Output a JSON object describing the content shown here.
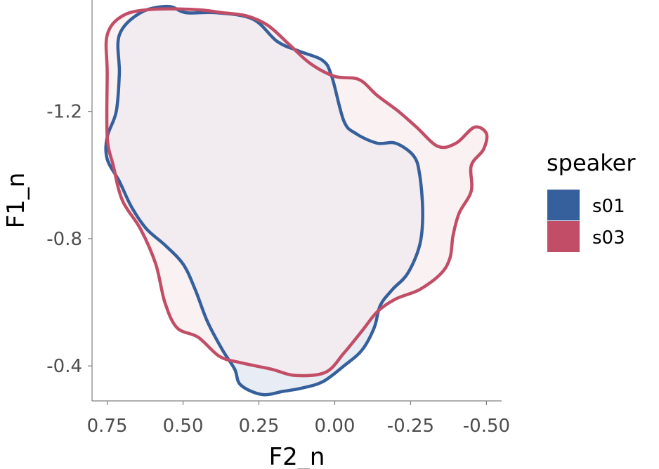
{
  "chart_data": {
    "type": "area",
    "xlabel": "F2_n",
    "ylabel": "F1_n",
    "x_reversed": true,
    "y_reversed": true,
    "xlim": [
      0.8,
      -0.55
    ],
    "ylim": [
      -1.55,
      -0.29
    ],
    "x_ticks": [
      0.75,
      0.5,
      0.25,
      0.0,
      -0.25,
      -0.5
    ],
    "x_tick_labels": [
      "0.75",
      "0.50",
      "0.25",
      "0.00",
      "-0.25",
      "-0.50"
    ],
    "y_ticks": [
      -1.2,
      -0.8,
      -0.4
    ],
    "y_tick_labels": [
      "-1.2",
      "-0.8",
      "-0.4"
    ],
    "grid": false,
    "legend": {
      "title": "speaker",
      "position": "right"
    },
    "series": [
      {
        "name": "s01",
        "color": "#36609b",
        "fill_color": "#dbe3ef",
        "points": [
          [
            0.55,
            -1.53
          ],
          [
            0.49,
            -1.51
          ],
          [
            0.39,
            -1.51
          ],
          [
            0.27,
            -1.49
          ],
          [
            0.19,
            -1.42
          ],
          [
            0.12,
            -1.39
          ],
          [
            0.04,
            -1.36
          ],
          [
            0.01,
            -1.31
          ],
          [
            -0.03,
            -1.17
          ],
          [
            -0.07,
            -1.13
          ],
          [
            -0.14,
            -1.1
          ],
          [
            -0.2,
            -1.1
          ],
          [
            -0.26,
            -1.06
          ],
          [
            -0.28,
            -1.0
          ],
          [
            -0.29,
            -0.88
          ],
          [
            -0.28,
            -0.78
          ],
          [
            -0.24,
            -0.69
          ],
          [
            -0.19,
            -0.64
          ],
          [
            -0.15,
            -0.59
          ],
          [
            -0.13,
            -0.52
          ],
          [
            -0.09,
            -0.45
          ],
          [
            -0.03,
            -0.4
          ],
          [
            0.04,
            -0.35
          ],
          [
            0.11,
            -0.33
          ],
          [
            0.17,
            -0.32
          ],
          [
            0.24,
            -0.31
          ],
          [
            0.31,
            -0.34
          ],
          [
            0.33,
            -0.39
          ],
          [
            0.37,
            -0.45
          ],
          [
            0.42,
            -0.54
          ],
          [
            0.46,
            -0.64
          ],
          [
            0.5,
            -0.72
          ],
          [
            0.56,
            -0.78
          ],
          [
            0.62,
            -0.83
          ],
          [
            0.67,
            -0.9
          ],
          [
            0.71,
            -0.98
          ],
          [
            0.75,
            -1.05
          ],
          [
            0.75,
            -1.12
          ],
          [
            0.72,
            -1.2
          ],
          [
            0.71,
            -1.32
          ],
          [
            0.71,
            -1.44
          ],
          [
            0.64,
            -1.51
          ]
        ]
      },
      {
        "name": "s03",
        "color": "#c24d66",
        "fill_color": "#f7e9ec",
        "points": [
          [
            0.46,
            -1.52
          ],
          [
            0.37,
            -1.51
          ],
          [
            0.29,
            -1.5
          ],
          [
            0.22,
            -1.47
          ],
          [
            0.15,
            -1.41
          ],
          [
            0.08,
            -1.35
          ],
          [
            0.0,
            -1.31
          ],
          [
            -0.08,
            -1.3
          ],
          [
            -0.14,
            -1.25
          ],
          [
            -0.21,
            -1.2
          ],
          [
            -0.27,
            -1.15
          ],
          [
            -0.34,
            -1.09
          ],
          [
            -0.4,
            -1.1
          ],
          [
            -0.46,
            -1.15
          ],
          [
            -0.5,
            -1.13
          ],
          [
            -0.49,
            -1.08
          ],
          [
            -0.45,
            -1.03
          ],
          [
            -0.45,
            -0.95
          ],
          [
            -0.41,
            -0.88
          ],
          [
            -0.39,
            -0.81
          ],
          [
            -0.38,
            -0.74
          ],
          [
            -0.35,
            -0.69
          ],
          [
            -0.28,
            -0.64
          ],
          [
            -0.2,
            -0.61
          ],
          [
            -0.14,
            -0.57
          ],
          [
            -0.09,
            -0.51
          ],
          [
            -0.03,
            -0.44
          ],
          [
            0.03,
            -0.38
          ],
          [
            0.13,
            -0.37
          ],
          [
            0.21,
            -0.39
          ],
          [
            0.31,
            -0.41
          ],
          [
            0.38,
            -0.43
          ],
          [
            0.45,
            -0.49
          ],
          [
            0.52,
            -0.52
          ],
          [
            0.56,
            -0.6
          ],
          [
            0.59,
            -0.72
          ],
          [
            0.64,
            -0.83
          ],
          [
            0.7,
            -0.92
          ],
          [
            0.73,
            -1.03
          ],
          [
            0.75,
            -1.12
          ],
          [
            0.75,
            -1.32
          ],
          [
            0.75,
            -1.44
          ],
          [
            0.7,
            -1.5
          ],
          [
            0.61,
            -1.52
          ]
        ]
      }
    ]
  }
}
